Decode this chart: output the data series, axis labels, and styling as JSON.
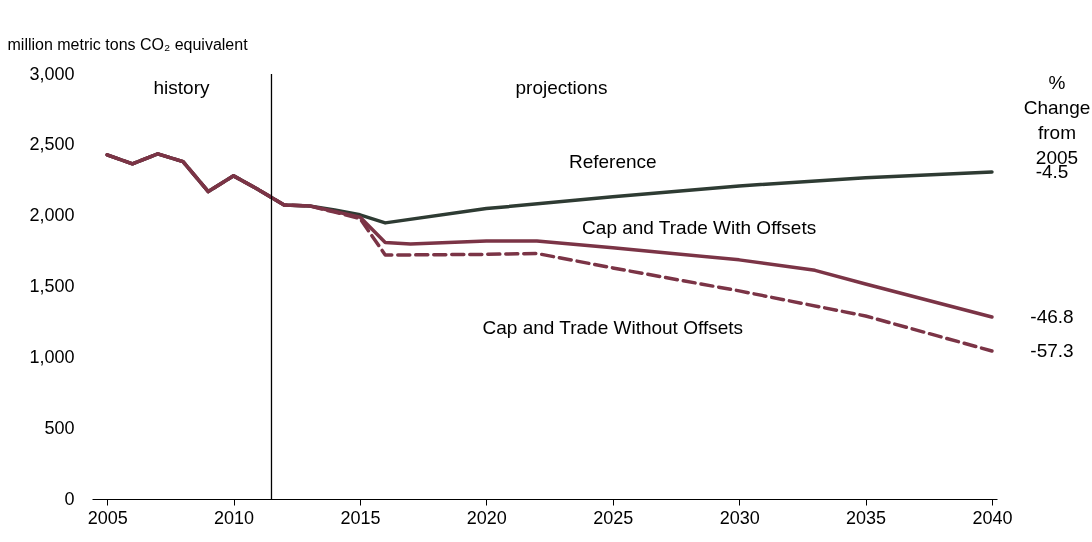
{
  "chart_data": {
    "type": "line",
    "ylabel": "million metric tons CO₂ equivalent",
    "xlim": [
      2004.4,
      2040.2
    ],
    "xticks": [
      2005,
      2010,
      2015,
      2020,
      2025,
      2030,
      2035,
      2040
    ],
    "ylim": [
      0,
      3000
    ],
    "yticks": [
      0,
      500,
      {
        "value": 1000,
        "label": "1,000"
      },
      {
        "value": 1500,
        "label": "1,500"
      },
      {
        "value": 2000,
        "label": "2,000"
      },
      {
        "value": 2500,
        "label": "2,500"
      },
      {
        "value": 3000,
        "label": "3,000"
      }
    ],
    "marker": "none",
    "ref_lines": [
      {
        "axis": "x",
        "value": 2011.5,
        "color": "#000000"
      }
    ],
    "annotations": [
      "history",
      "projections",
      "% Change from 2005",
      "-4.5",
      "-46.8",
      "-57.3"
    ],
    "series": [
      {
        "name": "Reference",
        "color": "#2e3b33",
        "line_style": "solid",
        "x": [
          2005,
          2006,
          2007,
          2008,
          2009,
          2010,
          2011,
          2012,
          2013,
          2014,
          2015,
          2016,
          2020,
          2025,
          2030,
          2035,
          2040
        ],
        "values": [
          2429,
          2366,
          2436,
          2382,
          2170,
          2281,
          2182,
          2076,
          2069,
          2041,
          2006,
          1949,
          2050,
          2133,
          2210,
          2267,
          2309
        ]
      },
      {
        "name": "Cap and Trade With Offsets",
        "color": "#7b3446",
        "line_style": "solid",
        "x": [
          2005,
          2006,
          2007,
          2008,
          2009,
          2010,
          2011,
          2012,
          2013,
          2014,
          2015,
          2016,
          2017,
          2020,
          2022,
          2025,
          2030,
          2033,
          2035,
          2040
        ],
        "values": [
          2429,
          2366,
          2436,
          2382,
          2170,
          2281,
          2182,
          2076,
          2069,
          2030,
          1990,
          1810,
          1800,
          1822,
          1822,
          1773,
          1688,
          1614,
          1518,
          1285
        ]
      },
      {
        "name": "Cap and Trade Without Offsets",
        "color": "#7b3446",
        "line_style": "dashed",
        "x": [
          2005,
          2006,
          2007,
          2008,
          2009,
          2010,
          2011,
          2012,
          2013,
          2014,
          2015,
          2016,
          2017,
          2020,
          2022,
          2025,
          2030,
          2035,
          2040
        ],
        "values": [
          2429,
          2366,
          2436,
          2382,
          2170,
          2281,
          2182,
          2076,
          2069,
          2025,
          1980,
          1723,
          1723,
          1727,
          1733,
          1631,
          1469,
          1292,
          1045
        ]
      }
    ]
  }
}
